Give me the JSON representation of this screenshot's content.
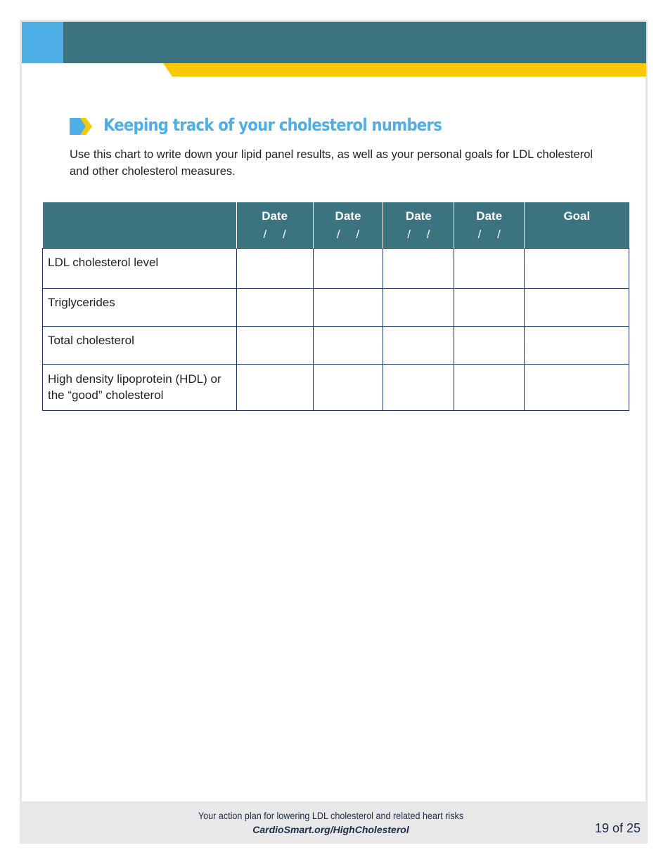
{
  "title": "Keeping track of your cholesterol numbers",
  "intro": "Use this chart to write down your lipid panel results, as well as your personal goals for LDL cholesterol and other cholesterol measures.",
  "table": {
    "headers": [
      "",
      "Date",
      "Date",
      "Date",
      "Date",
      "Goal"
    ],
    "date_placeholder": "/ /",
    "rows": [
      "LDL cholesterol level",
      "Triglycerides",
      "Total cholesterol",
      "High density lipoprotein (HDL) or the “good” cholesterol"
    ]
  },
  "footer": {
    "tagline": "Your action plan for lowering LDL cholesterol and related heart risks",
    "url": "CardioSmart.org/HighCholesterol",
    "page": "19 of 25"
  },
  "colors": {
    "teal": "#3b7380",
    "blue": "#4eaee6",
    "yellow": "#fbc808"
  }
}
